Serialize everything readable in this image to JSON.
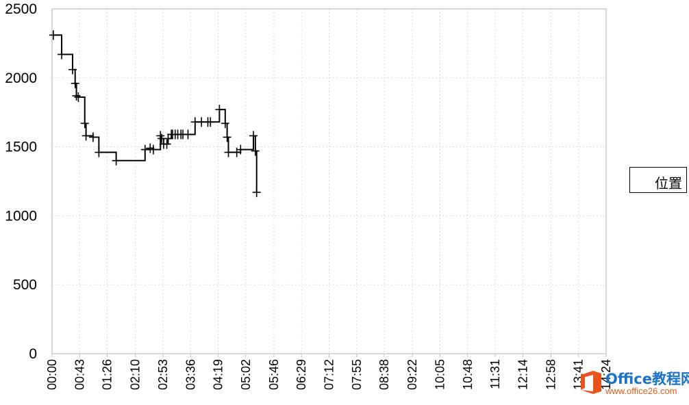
{
  "chart_data": {
    "type": "line",
    "line_style": "step",
    "title": "",
    "xlabel": "",
    "ylabel": "",
    "ylim": [
      0,
      2500
    ],
    "y_ticks": [
      "0",
      "500",
      "1000",
      "1500",
      "2000",
      "2500"
    ],
    "x_ticks": [
      "00:00",
      "00:43",
      "01:26",
      "02:10",
      "02:53",
      "03:36",
      "04:19",
      "05:02",
      "05:46",
      "06:29",
      "07:12",
      "07:55",
      "08:38",
      "09:22",
      "10:05",
      "10:48",
      "11:31",
      "12:14",
      "12:58",
      "13:41",
      "14:24"
    ],
    "grid": true,
    "legend_position": "right",
    "series": [
      {
        "name": "位置",
        "color": "#000000",
        "marker": "plus",
        "x": [
          "00:02",
          "00:15",
          "00:32",
          "00:36",
          "00:38",
          "00:41",
          "00:51",
          "00:53",
          "01:04",
          "01:13",
          "01:40",
          "02:25",
          "02:33",
          "02:38",
          "02:49",
          "02:51",
          "02:54",
          "02:59",
          "03:01",
          "03:06",
          "03:08",
          "03:12",
          "03:16",
          "03:21",
          "03:24",
          "03:32",
          "03:43",
          "03:53",
          "04:03",
          "04:07",
          "04:21",
          "04:30",
          "04:33",
          "04:35",
          "04:48",
          "04:54",
          "05:14",
          "05:17",
          "05:19"
        ],
        "y": [
          2310,
          2170,
          2060,
          1960,
          1870,
          1860,
          1670,
          1580,
          1570,
          1460,
          1400,
          1480,
          1490,
          1480,
          1580,
          1560,
          1520,
          1520,
          1560,
          1590,
          1590,
          1590,
          1590,
          1590,
          1590,
          1590,
          1680,
          1680,
          1680,
          1680,
          1770,
          1670,
          1570,
          1460,
          1460,
          1480,
          1580,
          1470,
          1170
        ]
      }
    ]
  },
  "legend": {
    "label": "位置"
  },
  "watermark": {
    "name": "Office教程网",
    "url": "www.office26.com"
  }
}
